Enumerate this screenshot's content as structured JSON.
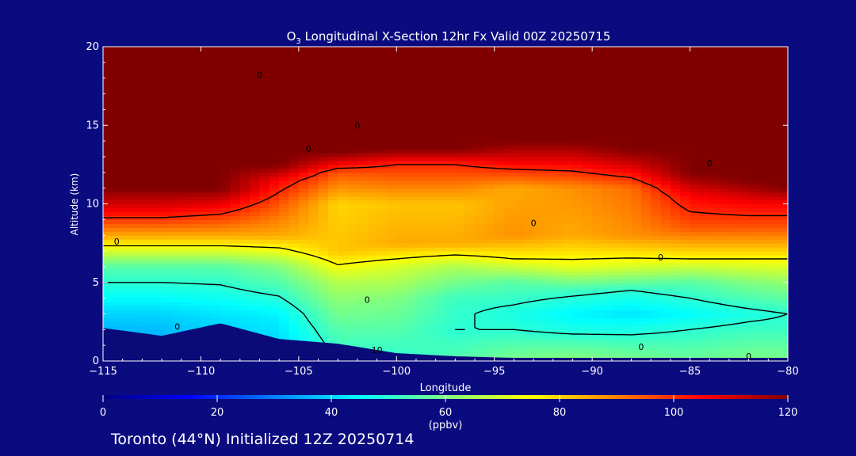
{
  "figure": {
    "footer": "Toronto (44°N) Initialized 12Z 20250714",
    "background": "#0b0b80"
  },
  "chart_data": {
    "type": "heatmap",
    "title": "O3 Longitudinal X-Section 12hr  Fx Valid 00Z 20250715",
    "title_parts": {
      "pre": "O",
      "sub": "3",
      "post": " Longitudinal X-Section 12hr  Fx Valid 00Z 20250715"
    },
    "xlabel": "Longitude",
    "ylabel": "Altitude (km)",
    "xlim": [
      -115,
      -80
    ],
    "ylim": [
      0,
      20
    ],
    "x_ticks": [
      -115,
      -110,
      -105,
      -100,
      -95,
      -90,
      -85,
      -80
    ],
    "x_tick_labels": [
      "−115",
      "−110",
      "−105",
      "−100",
      "−95",
      "−90",
      "−85",
      "−80"
    ],
    "y_ticks": [
      0,
      5,
      10,
      15,
      20
    ],
    "y_tick_labels": [
      "0",
      "5",
      "10",
      "15",
      "20"
    ],
    "colorbar": {
      "label": "(ppbv)",
      "range": [
        0,
        120
      ],
      "ticks": [
        0,
        20,
        40,
        60,
        80,
        100,
        120
      ],
      "tick_labels": [
        "0",
        "20",
        "40",
        "60",
        "80",
        "100",
        "120"
      ],
      "colors": [
        "#000080",
        "#0000ff",
        "#0080ff",
        "#00ffff",
        "#80ff80",
        "#ffff00",
        "#ff8000",
        "#ff0000",
        "#800000"
      ]
    },
    "longitudes": [
      -115,
      -112,
      -109,
      -106,
      -103,
      -100,
      -97,
      -94,
      -91,
      -88,
      -85,
      -82,
      -80
    ],
    "surface_km": [
      2.1,
      1.6,
      2.4,
      1.4,
      1.1,
      0.5,
      0.3,
      0.2,
      0.2,
      0.2,
      0.2,
      0.2,
      0.2
    ],
    "profiles_ppbv": [
      [
        [
          0,
          30
        ],
        [
          3,
          40
        ],
        [
          6,
          55
        ],
        [
          8,
          85
        ],
        [
          9.5,
          105
        ],
        [
          11,
          120
        ],
        [
          20,
          120
        ]
      ],
      [
        [
          0,
          32
        ],
        [
          3,
          40
        ],
        [
          6,
          55
        ],
        [
          8,
          85
        ],
        [
          9.5,
          105
        ],
        [
          11,
          120
        ],
        [
          20,
          120
        ]
      ],
      [
        [
          0,
          35
        ],
        [
          3,
          42
        ],
        [
          6,
          55
        ],
        [
          8,
          85
        ],
        [
          9.8,
          105
        ],
        [
          11,
          120
        ],
        [
          20,
          120
        ]
      ],
      [
        [
          0,
          38
        ],
        [
          3,
          44
        ],
        [
          6,
          60
        ],
        [
          8,
          85
        ],
        [
          10,
          95
        ],
        [
          11.5,
          105
        ],
        [
          12.5,
          120
        ],
        [
          20,
          120
        ]
      ],
      [
        [
          0,
          50
        ],
        [
          2,
          55
        ],
        [
          3.5,
          60
        ],
        [
          5,
          66
        ],
        [
          7,
          82
        ],
        [
          10,
          80
        ],
        [
          12,
          95
        ],
        [
          13.3,
          120
        ],
        [
          20,
          120
        ]
      ],
      [
        [
          0,
          50
        ],
        [
          2,
          55
        ],
        [
          4,
          60
        ],
        [
          6,
          70
        ],
        [
          7.5,
          85
        ],
        [
          10,
          82
        ],
        [
          12.5,
          100
        ],
        [
          13.5,
          120
        ],
        [
          20,
          120
        ]
      ],
      [
        [
          0,
          55
        ],
        [
          2,
          50
        ],
        [
          4,
          52
        ],
        [
          6,
          65
        ],
        [
          7.5,
          85
        ],
        [
          10,
          82
        ],
        [
          12.5,
          100
        ],
        [
          13.5,
          120
        ],
        [
          20,
          120
        ]
      ],
      [
        [
          0,
          60
        ],
        [
          2,
          50
        ],
        [
          3,
          48
        ],
        [
          5,
          55
        ],
        [
          6.5,
          75
        ],
        [
          8,
          88
        ],
        [
          11,
          85
        ],
        [
          13,
          110
        ],
        [
          14,
          120
        ],
        [
          20,
          120
        ]
      ],
      [
        [
          0,
          62
        ],
        [
          2,
          48
        ],
        [
          3,
          44
        ],
        [
          4.5,
          52
        ],
        [
          6,
          72
        ],
        [
          8,
          85
        ],
        [
          11,
          88
        ],
        [
          13,
          110
        ],
        [
          14,
          120
        ],
        [
          20,
          120
        ]
      ],
      [
        [
          0,
          60
        ],
        [
          2,
          48
        ],
        [
          3,
          42
        ],
        [
          4.5,
          50
        ],
        [
          6,
          70
        ],
        [
          8,
          88
        ],
        [
          11,
          92
        ],
        [
          12.5,
          110
        ],
        [
          13.5,
          120
        ],
        [
          20,
          120
        ]
      ],
      [
        [
          0,
          58
        ],
        [
          2,
          50
        ],
        [
          3,
          45
        ],
        [
          5,
          55
        ],
        [
          6.5,
          75
        ],
        [
          8.5,
          95
        ],
        [
          10.5,
          105
        ],
        [
          12,
          120
        ],
        [
          20,
          120
        ]
      ],
      [
        [
          0,
          60
        ],
        [
          2,
          52
        ],
        [
          3,
          48
        ],
        [
          5,
          60
        ],
        [
          6.5,
          75
        ],
        [
          8.5,
          95
        ],
        [
          10,
          105
        ],
        [
          11.5,
          120
        ],
        [
          20,
          120
        ]
      ],
      [
        [
          0,
          60
        ],
        [
          2,
          52
        ],
        [
          3,
          50
        ],
        [
          5,
          62
        ],
        [
          6.5,
          75
        ],
        [
          8.5,
          95
        ],
        [
          10,
          105
        ],
        [
          11,
          120
        ],
        [
          20,
          120
        ]
      ]
    ],
    "contour_labels": [
      {
        "lon": -102,
        "alt": 15.0,
        "text": "0"
      },
      {
        "lon": -107,
        "alt": 18.2,
        "text": "0"
      },
      {
        "lon": -104.5,
        "alt": 13.5,
        "text": "0"
      },
      {
        "lon": -93,
        "alt": 8.8,
        "text": "0"
      },
      {
        "lon": -101.5,
        "alt": 3.9,
        "text": "0"
      },
      {
        "lon": -87.5,
        "alt": 0.9,
        "text": "0"
      },
      {
        "lon": -86.5,
        "alt": 6.6,
        "text": "0"
      },
      {
        "lon": -84,
        "alt": 12.6,
        "text": "0"
      },
      {
        "lon": -82,
        "alt": 0.3,
        "text": "0"
      },
      {
        "lon": -114.3,
        "alt": 7.6,
        "text": "0"
      },
      {
        "lon": -111.2,
        "alt": 2.2,
        "text": "0"
      },
      {
        "lon": -101,
        "alt": 0.7,
        "text": "10"
      }
    ]
  }
}
